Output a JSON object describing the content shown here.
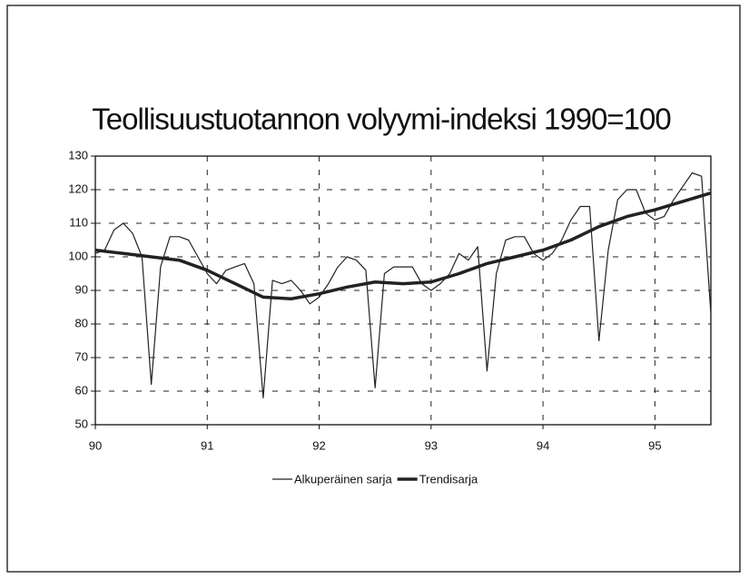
{
  "chart_data": {
    "type": "line",
    "title": "Teollisuustuotannon volyymi-indeksi 1990=100",
    "xlim": [
      90,
      95.5
    ],
    "xticks": [
      90,
      91,
      92,
      93,
      94,
      95
    ],
    "ylim": [
      50,
      130
    ],
    "yticks": [
      50,
      60,
      70,
      80,
      90,
      100,
      110,
      120,
      130
    ],
    "grid": true,
    "legend": "bottom",
    "series": [
      {
        "name": "Alkuperäinen sarja",
        "color": "#222",
        "width": 1.2,
        "x": [
          90,
          90.083,
          90.167,
          90.25,
          90.333,
          90.417,
          90.5,
          90.583,
          90.667,
          90.75,
          90.833,
          90.917,
          91,
          91.083,
          91.167,
          91.25,
          91.333,
          91.417,
          91.5,
          91.583,
          91.667,
          91.75,
          91.833,
          91.917,
          92,
          92.083,
          92.167,
          92.25,
          92.333,
          92.417,
          92.5,
          92.583,
          92.667,
          92.75,
          92.833,
          92.917,
          93,
          93.083,
          93.167,
          93.25,
          93.333,
          93.417,
          93.5,
          93.583,
          93.667,
          93.75,
          93.833,
          93.917,
          94,
          94.083,
          94.167,
          94.25,
          94.333,
          94.417,
          94.5,
          94.583,
          94.667,
          94.75,
          94.833,
          94.917,
          95,
          95.083,
          95.167,
          95.25,
          95.333,
          95.417,
          95.5
        ],
        "values": [
          101,
          102,
          108,
          110,
          107,
          100,
          62,
          97,
          106,
          106,
          105,
          100,
          95,
          92,
          96,
          97,
          98,
          92,
          58,
          93,
          92,
          93,
          90,
          86,
          88,
          92,
          97,
          100,
          99,
          96,
          61,
          95,
          97,
          97,
          97,
          92,
          90,
          92,
          95,
          101,
          99,
          103,
          66,
          95,
          105,
          106,
          106,
          101,
          99,
          101,
          105,
          111,
          115,
          115,
          75,
          102,
          117,
          120,
          120,
          113,
          111,
          112,
          117,
          121,
          125,
          124,
          83
        ]
      },
      {
        "name": "Trendisarja",
        "color": "#222",
        "width": 3.5,
        "x": [
          90,
          90.25,
          90.5,
          90.75,
          91,
          91.25,
          91.5,
          91.75,
          92,
          92.25,
          92.5,
          92.75,
          93,
          93.25,
          93.5,
          93.75,
          94,
          94.25,
          94.5,
          94.75,
          95,
          95.25,
          95.5
        ],
        "values": [
          102,
          101,
          100,
          99,
          96,
          92,
          88,
          87.5,
          89,
          91,
          92.5,
          92,
          92.5,
          95,
          98,
          100,
          102,
          105,
          109,
          112,
          114,
          116.5,
          119
        ]
      }
    ]
  }
}
